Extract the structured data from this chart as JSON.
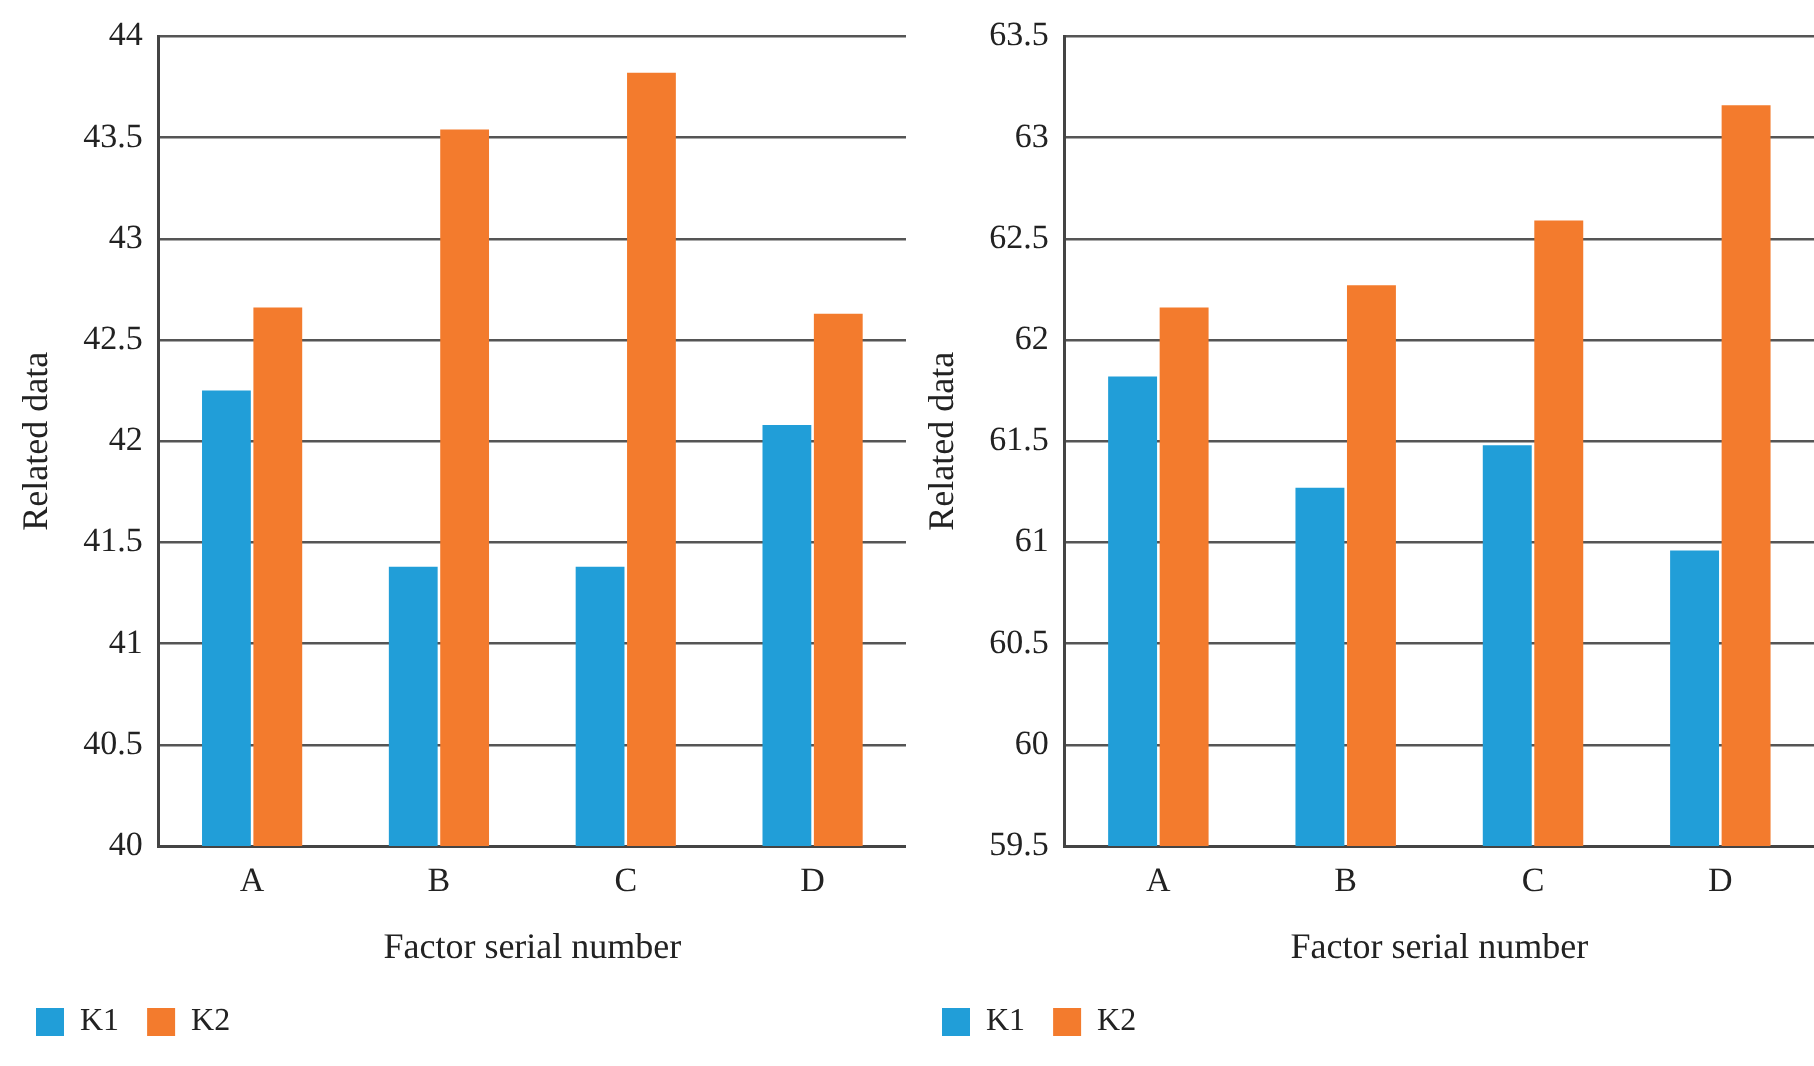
{
  "chart_data": [
    {
      "type": "bar",
      "xlabel": "Factor serial number",
      "ylabel": "Related data",
      "categories": [
        "A",
        "B",
        "C",
        "D"
      ],
      "series": [
        {
          "name": "K1",
          "color": "#219ed8",
          "values": [
            42.25,
            41.38,
            41.38,
            42.08
          ]
        },
        {
          "name": "K2",
          "color": "#f37b2d",
          "values": [
            42.66,
            43.54,
            43.82,
            42.63
          ]
        }
      ],
      "ylim": [
        40,
        44
      ],
      "yticks": [
        40,
        40.5,
        41,
        41.5,
        42,
        42.5,
        43,
        43.5,
        44
      ],
      "grid": "y",
      "legend": "bottom"
    },
    {
      "type": "bar",
      "xlabel": "Factor serial number",
      "ylabel": "Related data",
      "categories": [
        "A",
        "B",
        "C",
        "D"
      ],
      "series": [
        {
          "name": "K1",
          "color": "#219ed8",
          "values": [
            61.82,
            61.27,
            61.48,
            60.96
          ]
        },
        {
          "name": "K2",
          "color": "#f37b2d",
          "values": [
            62.16,
            62.27,
            62.59,
            63.16
          ]
        }
      ],
      "ylim": [
        59.5,
        63.5
      ],
      "yticks": [
        59.5,
        60,
        60.5,
        61,
        61.5,
        62,
        62.5,
        63,
        63.5
      ],
      "grid": "y",
      "legend": "bottom"
    }
  ]
}
